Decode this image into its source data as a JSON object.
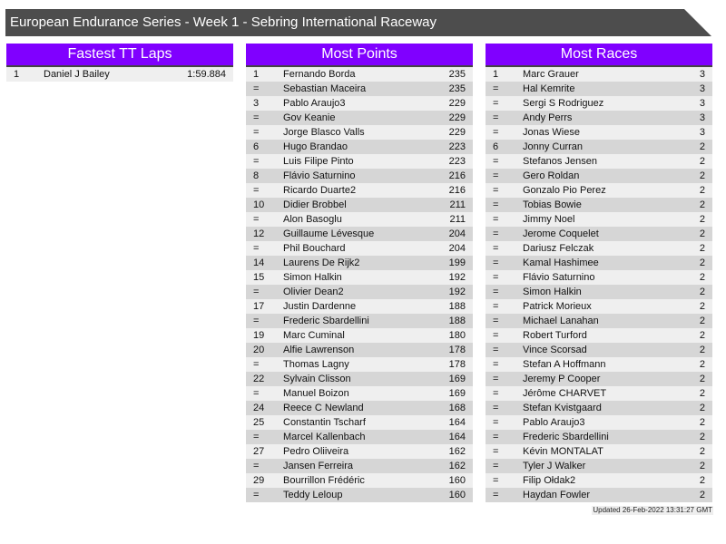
{
  "title": "European Endurance Series - Week 1 - Sebring International Raceway",
  "colors": {
    "title_bar": "#4d4d4d",
    "panel_header": "#8000ff",
    "row_light": "#efefef",
    "row_dark": "#d6d6d6"
  },
  "panels": [
    {
      "title": "Fastest TT Laps",
      "rows": [
        [
          "1",
          "Daniel J Bailey",
          "1:59.884"
        ]
      ]
    },
    {
      "title": "Most Points",
      "rows": [
        [
          "1",
          "Fernando Borda",
          "235"
        ],
        [
          "=",
          "Sebastian Maceira",
          "235"
        ],
        [
          "3",
          "Pablo Araujo3",
          "229"
        ],
        [
          "=",
          "Gov Keanie",
          "229"
        ],
        [
          "=",
          "Jorge Blasco Valls",
          "229"
        ],
        [
          "6",
          "Hugo Brandao",
          "223"
        ],
        [
          "=",
          "Luis Filipe Pinto",
          "223"
        ],
        [
          "8",
          "Flávio Saturnino",
          "216"
        ],
        [
          "=",
          "Ricardo Duarte2",
          "216"
        ],
        [
          "10",
          "Didier Brobbel",
          "211"
        ],
        [
          "=",
          "Alon Basoglu",
          "211"
        ],
        [
          "12",
          "Guillaume Lévesque",
          "204"
        ],
        [
          "=",
          "Phil Bouchard",
          "204"
        ],
        [
          "14",
          "Laurens De Rijk2",
          "199"
        ],
        [
          "15",
          "Simon Halkin",
          "192"
        ],
        [
          "=",
          "Olivier Dean2",
          "192"
        ],
        [
          "17",
          "Justin Dardenne",
          "188"
        ],
        [
          "=",
          "Frederic Sbardellini",
          "188"
        ],
        [
          "19",
          "Marc Cuminal",
          "180"
        ],
        [
          "20",
          "Alfie Lawrenson",
          "178"
        ],
        [
          "=",
          "Thomas Lagny",
          "178"
        ],
        [
          "22",
          "Sylvain Clisson",
          "169"
        ],
        [
          "=",
          "Manuel Boizon",
          "169"
        ],
        [
          "24",
          "Reece C Newland",
          "168"
        ],
        [
          "25",
          "Constantin Tscharf",
          "164"
        ],
        [
          "=",
          "Marcel Kallenbach",
          "164"
        ],
        [
          "27",
          "Pedro Oliiveira",
          "162"
        ],
        [
          "=",
          "Jansen Ferreira",
          "162"
        ],
        [
          "29",
          "Bourrillon Frédéric",
          "160"
        ],
        [
          "=",
          "Teddy Leloup",
          "160"
        ]
      ]
    },
    {
      "title": "Most Races",
      "rows": [
        [
          "1",
          "Marc Grauer",
          "3"
        ],
        [
          "=",
          "Hal Kemrite",
          "3"
        ],
        [
          "=",
          "Sergi S Rodriguez",
          "3"
        ],
        [
          "=",
          "Andy Perrs",
          "3"
        ],
        [
          "=",
          "Jonas Wiese",
          "3"
        ],
        [
          "6",
          "Jonny Curran",
          "2"
        ],
        [
          "=",
          "Stefanos Jensen",
          "2"
        ],
        [
          "=",
          "Gero Roldan",
          "2"
        ],
        [
          "=",
          "Gonzalo Pio Perez",
          "2"
        ],
        [
          "=",
          "Tobias Bowie",
          "2"
        ],
        [
          "=",
          "Jimmy Noel",
          "2"
        ],
        [
          "=",
          "Jerome Coquelet",
          "2"
        ],
        [
          "=",
          "Dariusz Felczak",
          "2"
        ],
        [
          "=",
          "Kamal Hashimee",
          "2"
        ],
        [
          "=",
          "Flávio Saturnino",
          "2"
        ],
        [
          "=",
          "Simon Halkin",
          "2"
        ],
        [
          "=",
          "Patrick Morieux",
          "2"
        ],
        [
          "=",
          "Michael Lanahan",
          "2"
        ],
        [
          "=",
          "Robert Turford",
          "2"
        ],
        [
          "=",
          "Vince Scorsad",
          "2"
        ],
        [
          "=",
          "Stefan A Hoffmann",
          "2"
        ],
        [
          "=",
          "Jeremy P Cooper",
          "2"
        ],
        [
          "=",
          "Jérôme CHARVET",
          "2"
        ],
        [
          "=",
          "Stefan Kvistgaard",
          "2"
        ],
        [
          "=",
          "Pablo Araujo3",
          "2"
        ],
        [
          "=",
          "Frederic Sbardellini",
          "2"
        ],
        [
          "=",
          "Kévin MONTALAT",
          "2"
        ],
        [
          "=",
          "Tyler J Walker",
          "2"
        ],
        [
          "=",
          "Filip Ołdak2",
          "2"
        ],
        [
          "=",
          "Haydan Fowler",
          "2"
        ]
      ]
    }
  ],
  "updated": "Updated 26-Feb-2022 13:31:27 GMT"
}
